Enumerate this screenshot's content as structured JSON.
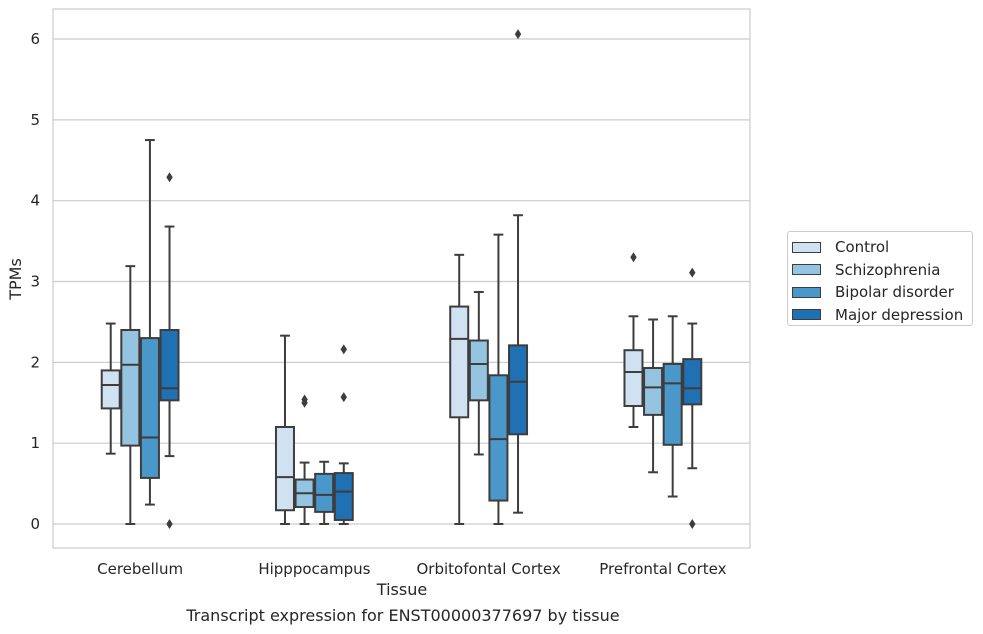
{
  "chart_data": {
    "type": "box",
    "xlabel": "Tissue",
    "ylabel": "TPMs",
    "caption": "Transcript expression for ENST00000377697 by tissue",
    "categories": [
      "Cerebellum",
      "Hipppocampus",
      "Orbitofontal Cortex",
      "Prefrontal Cortex"
    ],
    "yticks": [
      0,
      1,
      2,
      3,
      4,
      5,
      6
    ],
    "ylim": [
      -0.3,
      6.4
    ],
    "grid": "horizontal",
    "legend_position": "right",
    "series": [
      {
        "name": "Control",
        "color": "#d0e1f2",
        "boxes": [
          {
            "whislo": 0.87,
            "q1": 1.43,
            "med": 1.72,
            "q3": 1.9,
            "whishi": 2.48,
            "fliers": []
          },
          {
            "whislo": 0.0,
            "q1": 0.17,
            "med": 0.58,
            "q3": 1.2,
            "whishi": 2.33,
            "fliers": []
          },
          {
            "whislo": 0.0,
            "q1": 1.32,
            "med": 2.29,
            "q3": 2.69,
            "whishi": 3.33,
            "fliers": []
          },
          {
            "whislo": 1.2,
            "q1": 1.46,
            "med": 1.88,
            "q3": 2.15,
            "whishi": 2.57,
            "fliers": [
              3.3
            ]
          }
        ]
      },
      {
        "name": "Schizophrenia",
        "color": "#94c4df",
        "boxes": [
          {
            "whislo": 0.0,
            "q1": 0.97,
            "med": 1.97,
            "q3": 2.4,
            "whishi": 3.19,
            "fliers": []
          },
          {
            "whislo": 0.0,
            "q1": 0.21,
            "med": 0.38,
            "q3": 0.55,
            "whishi": 0.76,
            "fliers": [
              1.5,
              1.54
            ]
          },
          {
            "whislo": 0.86,
            "q1": 1.53,
            "med": 1.98,
            "q3": 2.27,
            "whishi": 2.87,
            "fliers": []
          },
          {
            "whislo": 0.64,
            "q1": 1.35,
            "med": 1.69,
            "q3": 1.93,
            "whishi": 2.53,
            "fliers": []
          }
        ]
      },
      {
        "name": "Bipolar disorder",
        "color": "#4a98c9",
        "boxes": [
          {
            "whislo": 0.24,
            "q1": 0.57,
            "med": 1.07,
            "q3": 2.3,
            "whishi": 4.75,
            "fliers": []
          },
          {
            "whislo": 0.0,
            "q1": 0.15,
            "med": 0.36,
            "q3": 0.62,
            "whishi": 0.77,
            "fliers": []
          },
          {
            "whislo": 0.0,
            "q1": 0.29,
            "med": 1.05,
            "q3": 1.84,
            "whishi": 3.58,
            "fliers": []
          },
          {
            "whislo": 0.34,
            "q1": 0.98,
            "med": 1.74,
            "q3": 1.98,
            "whishi": 2.57,
            "fliers": []
          }
        ]
      },
      {
        "name": "Major depression",
        "color": "#2070b4",
        "boxes": [
          {
            "whislo": 0.84,
            "q1": 1.53,
            "med": 1.68,
            "q3": 2.4,
            "whishi": 3.68,
            "fliers": [
              0.0,
              4.29
            ]
          },
          {
            "whislo": 0.0,
            "q1": 0.05,
            "med": 0.4,
            "q3": 0.63,
            "whishi": 0.75,
            "fliers": [
              1.57,
              2.16
            ]
          },
          {
            "whislo": 0.14,
            "q1": 1.11,
            "med": 1.76,
            "q3": 2.21,
            "whishi": 3.82,
            "fliers": [
              6.06
            ]
          },
          {
            "whislo": 0.69,
            "q1": 1.48,
            "med": 1.68,
            "q3": 2.04,
            "whishi": 2.48,
            "fliers": [
              0.0,
              3.11
            ]
          }
        ]
      }
    ]
  }
}
